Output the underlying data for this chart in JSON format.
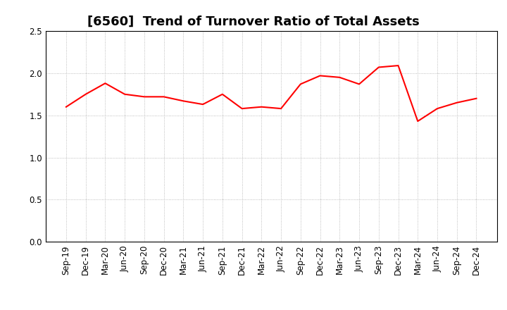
{
  "title": "[6560]  Trend of Turnover Ratio of Total Assets",
  "line_color": "#FF0000",
  "line_width": 1.5,
  "background_color": "#FFFFFF",
  "grid_color": "#AAAAAA",
  "ylim": [
    0.0,
    2.5
  ],
  "yticks": [
    0.0,
    0.5,
    1.0,
    1.5,
    2.0,
    2.5
  ],
  "x_labels": [
    "Sep-19",
    "Dec-19",
    "Mar-20",
    "Jun-20",
    "Sep-20",
    "Dec-20",
    "Mar-21",
    "Jun-21",
    "Sep-21",
    "Dec-21",
    "Mar-22",
    "Jun-22",
    "Sep-22",
    "Dec-22",
    "Mar-23",
    "Jun-23",
    "Sep-23",
    "Dec-23",
    "Mar-24",
    "Jun-24",
    "Sep-24",
    "Dec-24"
  ],
  "values": [
    1.6,
    1.75,
    1.88,
    1.75,
    1.72,
    1.72,
    1.67,
    1.63,
    1.75,
    1.58,
    1.6,
    1.58,
    1.87,
    1.97,
    1.95,
    1.87,
    2.07,
    2.09,
    1.43,
    1.58,
    1.65,
    1.7
  ],
  "title_fontsize": 13,
  "tick_fontsize": 8.5
}
